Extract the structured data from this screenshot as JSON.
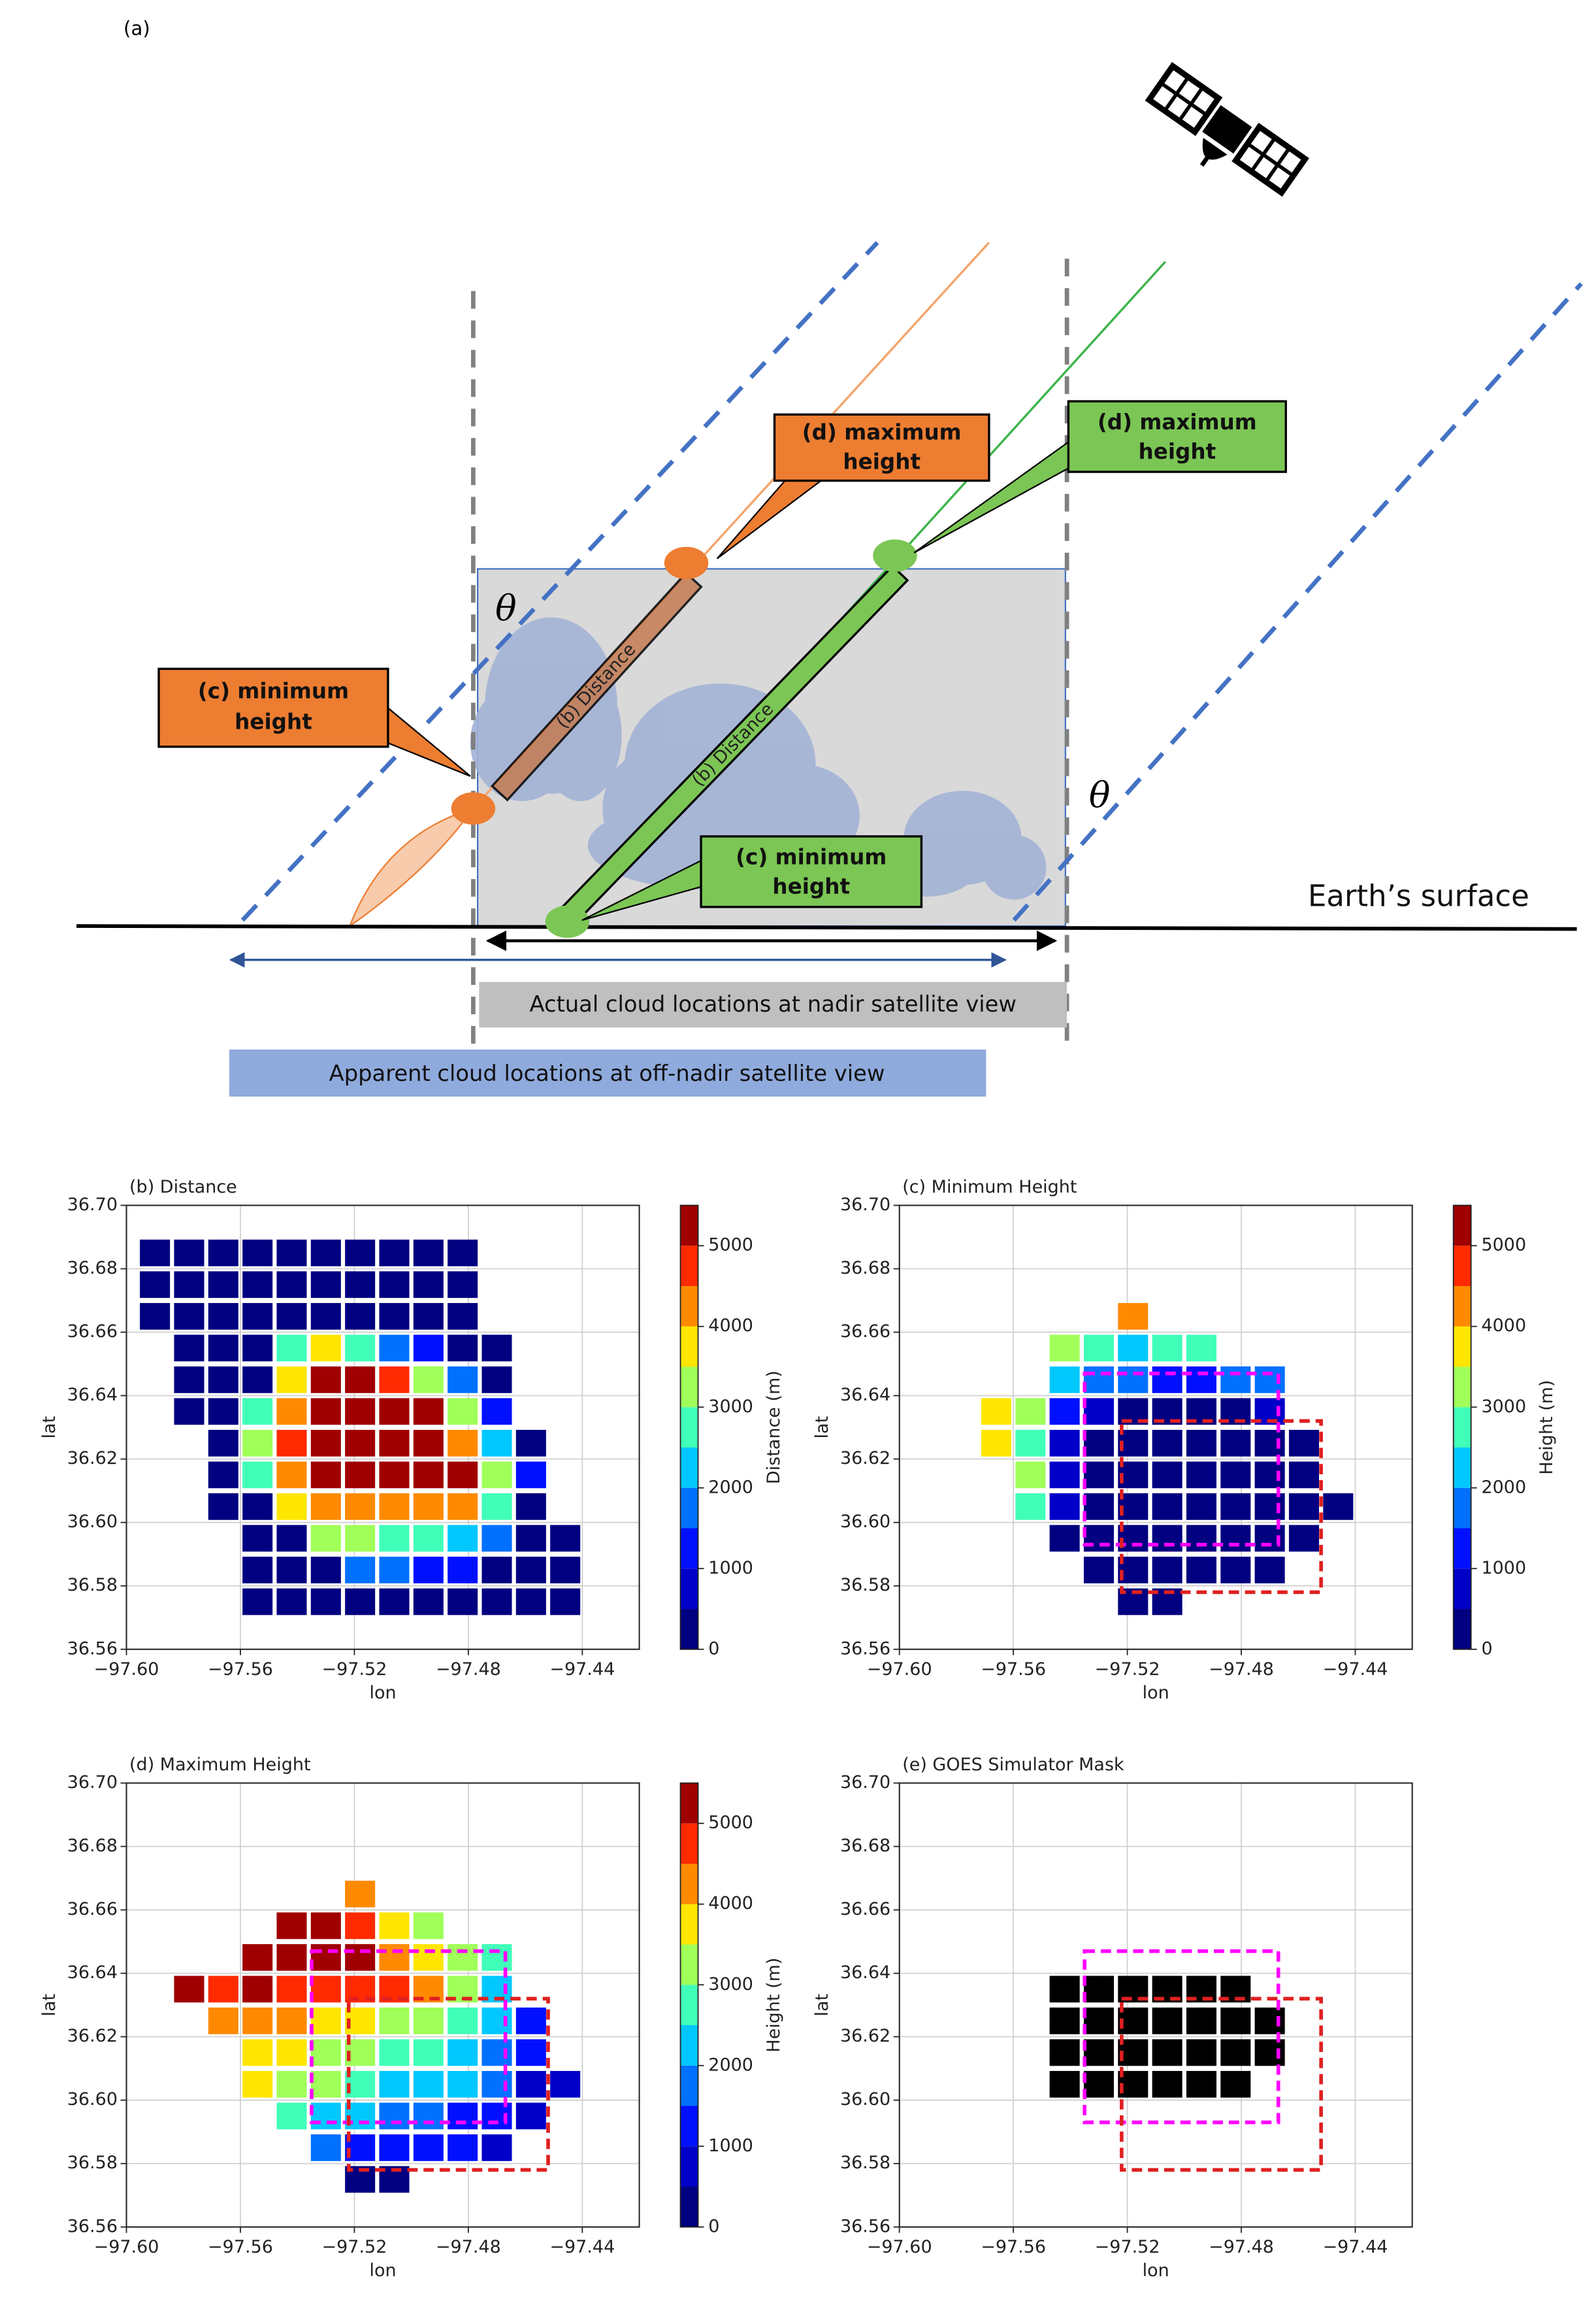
{
  "diagram": {
    "panel_label": "(a)",
    "theta_left": "θ",
    "theta_right": "θ",
    "orange_min": [
      "(c) minimum",
      "height"
    ],
    "orange_max": [
      "(d) maximum",
      "height"
    ],
    "green_max": [
      "(d) maximum",
      "height"
    ],
    "green_min": [
      "(c) minimum",
      "height"
    ],
    "orange_distance": "(b) Distance",
    "green_distance": "(b) Distance",
    "surface": "Earth’s surface",
    "actual": "Actual cloud locations at nadir satellite view",
    "apparent": "Apparent cloud locations at off-nadir satellite view"
  },
  "colormap": [
    "#000080",
    "#0000c8",
    "#0010ff",
    "#0070ff",
    "#00c8ff",
    "#40ffb8",
    "#a0ff58",
    "#ffe600",
    "#ff8a00",
    "#ff2a00",
    "#a00000"
  ],
  "chart_data": [
    {
      "type": "heatmap",
      "title": "(b) Distance",
      "xlabel": "lon",
      "ylabel": "lat",
      "xlim": [
        -97.6,
        -97.42
      ],
      "ylim": [
        36.56,
        36.7
      ],
      "xticks": [
        {
          "value": -97.6,
          "label": "−97.60"
        },
        {
          "value": -97.56,
          "label": "−97.56"
        },
        {
          "value": -97.52,
          "label": "−97.52"
        },
        {
          "value": -97.48,
          "label": "−97.48"
        },
        {
          "value": -97.44,
          "label": "−97.44"
        }
      ],
      "yticks": [
        36.56,
        36.58,
        {
          "value": 36.6,
          "label": "36.60"
        },
        36.62,
        36.64,
        36.66,
        36.68,
        {
          "value": 36.7,
          "label": "36.70"
        }
      ],
      "grid": true,
      "x": [
        -97.59,
        -97.578,
        -97.566,
        -97.554,
        -97.542,
        -97.53,
        -97.518,
        -97.506,
        -97.494,
        -97.482,
        -97.47,
        -97.458,
        -97.446
      ],
      "y": [
        36.685,
        36.675,
        36.665,
        36.655,
        36.645,
        36.635,
        36.625,
        36.615,
        36.605,
        36.595,
        36.585,
        36.575
      ],
      "values": [
        [
          0,
          0,
          0,
          0,
          0,
          0,
          0,
          0,
          0,
          0,
          null,
          null,
          null
        ],
        [
          0,
          0,
          0,
          0,
          0,
          0,
          0,
          0,
          0,
          0,
          null,
          null,
          null
        ],
        [
          0,
          0,
          0,
          0,
          0,
          0,
          0,
          0,
          0,
          0,
          null,
          null,
          null
        ],
        [
          null,
          0,
          0,
          0,
          2500,
          3500,
          2800,
          1800,
          1000,
          0,
          0,
          null,
          null
        ],
        [
          null,
          0,
          0,
          0,
          3500,
          5400,
          5400,
          4500,
          3000,
          1500,
          0,
          null,
          null
        ],
        [
          null,
          0,
          0,
          2500,
          4000,
          5400,
          5400,
          5400,
          5400,
          3000,
          1200,
          null,
          null
        ],
        [
          null,
          null,
          0,
          3000,
          4500,
          5400,
          5400,
          5400,
          5400,
          4200,
          2000,
          0,
          null
        ],
        [
          null,
          null,
          0,
          2500,
          4000,
          5400,
          5400,
          5400,
          5400,
          5400,
          3000,
          1000,
          null
        ],
        [
          null,
          null,
          0,
          0,
          3500,
          4200,
          4200,
          4200,
          4200,
          4000,
          2500,
          0,
          null
        ],
        [
          null,
          null,
          null,
          0,
          0,
          3200,
          3000,
          2800,
          2600,
          2200,
          1500,
          0,
          0
        ],
        [
          null,
          null,
          null,
          0,
          0,
          0,
          1500,
          1500,
          1200,
          1000,
          0,
          0,
          0
        ],
        [
          null,
          null,
          null,
          0,
          0,
          0,
          0,
          0,
          0,
          0,
          0,
          0,
          0
        ]
      ],
      "colorbar": {
        "label": "Distance (m)",
        "clim": [
          0,
          5500
        ],
        "ticks": [
          0,
          1000,
          2000,
          3000,
          4000,
          5000
        ]
      }
    },
    {
      "type": "heatmap",
      "title": "(c) Minimum Height",
      "xlabel": "lon",
      "ylabel": "lat",
      "xlim": [
        -97.6,
        -97.42
      ],
      "ylim": [
        36.56,
        36.7
      ],
      "xticks": [
        {
          "value": -97.6,
          "label": "−97.60"
        },
        {
          "value": -97.56,
          "label": "−97.56"
        },
        {
          "value": -97.52,
          "label": "−97.52"
        },
        {
          "value": -97.48,
          "label": "−97.48"
        },
        {
          "value": -97.44,
          "label": "−97.44"
        }
      ],
      "yticks": [
        36.56,
        36.58,
        {
          "value": 36.6,
          "label": "36.60"
        },
        36.62,
        36.64,
        36.66,
        36.68,
        {
          "value": 36.7,
          "label": "36.70"
        }
      ],
      "grid": true,
      "x": [
        -97.59,
        -97.578,
        -97.566,
        -97.554,
        -97.542,
        -97.53,
        -97.518,
        -97.506,
        -97.494,
        -97.482,
        -97.47,
        -97.458,
        -97.446
      ],
      "y": [
        36.685,
        36.675,
        36.665,
        36.655,
        36.645,
        36.635,
        36.625,
        36.615,
        36.605,
        36.595,
        36.585,
        36.575
      ],
      "values": [
        [
          null,
          null,
          null,
          null,
          null,
          null,
          null,
          null,
          null,
          null,
          null,
          null,
          null
        ],
        [
          null,
          null,
          null,
          null,
          null,
          null,
          null,
          null,
          null,
          null,
          null,
          null,
          null
        ],
        [
          null,
          null,
          null,
          null,
          null,
          null,
          4000,
          null,
          null,
          null,
          null,
          null,
          null
        ],
        [
          null,
          null,
          null,
          null,
          3000,
          2500,
          2200,
          2500,
          2800,
          null,
          null,
          null,
          null
        ],
        [
          null,
          null,
          null,
          null,
          2200,
          1800,
          1500,
          1300,
          1200,
          1500,
          1800,
          null,
          null
        ],
        [
          null,
          null,
          3500,
          3000,
          1200,
          600,
          400,
          300,
          300,
          300,
          500,
          null,
          null
        ],
        [
          null,
          null,
          3800,
          2800,
          800,
          300,
          300,
          300,
          300,
          300,
          300,
          300,
          null
        ],
        [
          null,
          null,
          null,
          3000,
          600,
          300,
          300,
          300,
          300,
          300,
          300,
          300,
          null
        ],
        [
          null,
          null,
          null,
          2500,
          500,
          300,
          300,
          300,
          300,
          300,
          300,
          300,
          300
        ],
        [
          null,
          null,
          null,
          null,
          400,
          300,
          300,
          300,
          300,
          300,
          300,
          300,
          null
        ],
        [
          null,
          null,
          null,
          null,
          null,
          300,
          300,
          300,
          300,
          300,
          300,
          null,
          null
        ],
        [
          null,
          null,
          null,
          null,
          null,
          null,
          300,
          300,
          null,
          null,
          null,
          null,
          null
        ]
      ],
      "boxes": [
        {
          "color": "#ff00ff",
          "lon": [
            -97.535,
            -97.467
          ],
          "lat": [
            36.593,
            36.647
          ]
        },
        {
          "color": "#e02020",
          "lon": [
            -97.522,
            -97.452
          ],
          "lat": [
            36.578,
            36.632
          ]
        }
      ],
      "colorbar": {
        "label": "Height (m)",
        "clim": [
          0,
          5500
        ],
        "ticks": [
          0,
          1000,
          2000,
          3000,
          4000,
          5000
        ]
      }
    },
    {
      "type": "heatmap",
      "title": "(d) Maximum Height",
      "xlabel": "lon",
      "ylabel": "lat",
      "xlim": [
        -97.6,
        -97.42
      ],
      "ylim": [
        36.56,
        36.7
      ],
      "xticks": [
        {
          "value": -97.6,
          "label": "−97.60"
        },
        {
          "value": -97.56,
          "label": "−97.56"
        },
        {
          "value": -97.52,
          "label": "−97.52"
        },
        {
          "value": -97.48,
          "label": "−97.48"
        },
        {
          "value": -97.44,
          "label": "−97.44"
        }
      ],
      "yticks": [
        36.56,
        36.58,
        {
          "value": 36.6,
          "label": "36.60"
        },
        36.62,
        36.64,
        36.66,
        36.68,
        {
          "value": 36.7,
          "label": "36.70"
        }
      ],
      "grid": true,
      "x": [
        -97.59,
        -97.578,
        -97.566,
        -97.554,
        -97.542,
        -97.53,
        -97.518,
        -97.506,
        -97.494,
        -97.482,
        -97.47,
        -97.458,
        -97.446
      ],
      "y": [
        36.685,
        36.675,
        36.665,
        36.655,
        36.645,
        36.635,
        36.625,
        36.615,
        36.605,
        36.595,
        36.585,
        36.575
      ],
      "values": [
        [
          null,
          null,
          null,
          null,
          null,
          null,
          null,
          null,
          null,
          null,
          null,
          null,
          null
        ],
        [
          null,
          null,
          null,
          null,
          null,
          null,
          null,
          null,
          null,
          null,
          null,
          null,
          null
        ],
        [
          null,
          null,
          null,
          null,
          null,
          null,
          4000,
          null,
          null,
          null,
          null,
          null,
          null
        ],
        [
          null,
          null,
          null,
          null,
          5400,
          5400,
          4500,
          3800,
          3200,
          null,
          null,
          null,
          null
        ],
        [
          null,
          null,
          null,
          5400,
          5400,
          5400,
          5000,
          4000,
          3500,
          3000,
          2800,
          null,
          null
        ],
        [
          null,
          5000,
          4800,
          5000,
          4800,
          4800,
          4700,
          4500,
          4000,
          3200,
          2200,
          null,
          null
        ],
        [
          null,
          null,
          4200,
          4000,
          4000,
          3800,
          3500,
          3300,
          3000,
          2600,
          2000,
          1200,
          null
        ],
        [
          null,
          null,
          null,
          3800,
          3600,
          3200,
          3000,
          2800,
          2600,
          2200,
          1800,
          1000,
          null
        ],
        [
          null,
          null,
          null,
          3500,
          3200,
          3000,
          2500,
          2200,
          2200,
          2000,
          1500,
          800,
          600
        ],
        [
          null,
          null,
          null,
          null,
          2500,
          2200,
          2000,
          1800,
          1600,
          1400,
          1000,
          800,
          null
        ],
        [
          null,
          null,
          null,
          null,
          null,
          1500,
          1300,
          1200,
          1200,
          1000,
          800,
          null,
          null
        ],
        [
          null,
          null,
          null,
          null,
          null,
          null,
          400,
          400,
          null,
          null,
          null,
          null,
          null
        ]
      ],
      "boxes": [
        {
          "color": "#ff00ff",
          "lon": [
            -97.535,
            -97.467
          ],
          "lat": [
            36.593,
            36.647
          ]
        },
        {
          "color": "#e02020",
          "lon": [
            -97.522,
            -97.452
          ],
          "lat": [
            36.578,
            36.632
          ]
        }
      ],
      "colorbar": {
        "label": "Height (m)",
        "clim": [
          0,
          5500
        ],
        "ticks": [
          0,
          1000,
          2000,
          3000,
          4000,
          5000
        ]
      }
    },
    {
      "type": "heatmap",
      "title": "(e) GOES Simulator Mask",
      "xlabel": "lon",
      "ylabel": "lat",
      "xlim": [
        -97.6,
        -97.42
      ],
      "ylim": [
        36.56,
        36.7
      ],
      "xticks": [
        {
          "value": -97.6,
          "label": "−97.60"
        },
        {
          "value": -97.56,
          "label": "−97.56"
        },
        {
          "value": -97.52,
          "label": "−97.52"
        },
        {
          "value": -97.48,
          "label": "−97.48"
        },
        {
          "value": -97.44,
          "label": "−97.44"
        }
      ],
      "yticks": [
        36.56,
        36.58,
        {
          "value": 36.6,
          "label": "36.60"
        },
        36.62,
        36.64,
        36.66,
        36.68,
        {
          "value": 36.7,
          "label": "36.70"
        }
      ],
      "grid": true,
      "x": [
        -97.59,
        -97.578,
        -97.566,
        -97.554,
        -97.542,
        -97.53,
        -97.518,
        -97.506,
        -97.494,
        -97.482,
        -97.47,
        -97.458,
        -97.446
      ],
      "y": [
        36.685,
        36.675,
        36.665,
        36.655,
        36.645,
        36.635,
        36.625,
        36.615,
        36.605,
        36.595,
        36.585,
        36.575
      ],
      "values": [
        [
          null,
          null,
          null,
          null,
          null,
          null,
          null,
          null,
          null,
          null,
          null,
          null,
          null
        ],
        [
          null,
          null,
          null,
          null,
          null,
          null,
          null,
          null,
          null,
          null,
          null,
          null,
          null
        ],
        [
          null,
          null,
          null,
          null,
          null,
          null,
          null,
          null,
          null,
          null,
          null,
          null,
          null
        ],
        [
          null,
          null,
          null,
          null,
          null,
          null,
          null,
          null,
          null,
          null,
          null,
          null,
          null
        ],
        [
          null,
          null,
          null,
          null,
          null,
          null,
          null,
          null,
          null,
          null,
          null,
          null,
          null
        ],
        [
          null,
          null,
          null,
          null,
          1,
          1,
          1,
          1,
          1,
          1,
          null,
          null,
          null
        ],
        [
          null,
          null,
          null,
          null,
          1,
          1,
          1,
          1,
          1,
          1,
          1,
          null,
          null
        ],
        [
          null,
          null,
          null,
          null,
          1,
          1,
          1,
          1,
          1,
          1,
          1,
          null,
          null
        ],
        [
          null,
          null,
          null,
          null,
          1,
          1,
          1,
          1,
          1,
          1,
          null,
          null,
          null
        ],
        [
          null,
          null,
          null,
          null,
          null,
          null,
          null,
          null,
          null,
          null,
          null,
          null,
          null
        ],
        [
          null,
          null,
          null,
          null,
          null,
          null,
          null,
          null,
          null,
          null,
          null,
          null,
          null
        ],
        [
          null,
          null,
          null,
          null,
          null,
          null,
          null,
          null,
          null,
          null,
          null,
          null,
          null
        ]
      ],
      "color": "#000000",
      "boxes": [
        {
          "color": "#ff00ff",
          "lon": [
            -97.535,
            -97.467
          ],
          "lat": [
            36.593,
            36.647
          ]
        },
        {
          "color": "#e02020",
          "lon": [
            -97.522,
            -97.452
          ],
          "lat": [
            36.578,
            36.632
          ]
        }
      ]
    }
  ]
}
